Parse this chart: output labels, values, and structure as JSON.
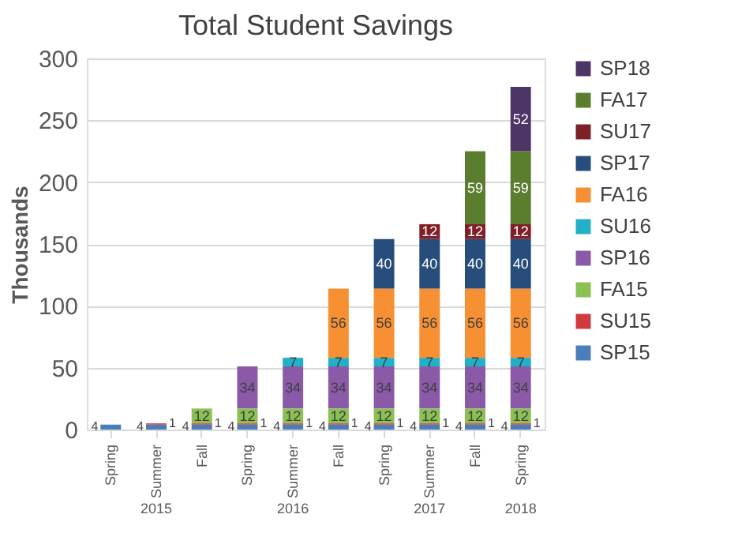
{
  "chart_data": {
    "type": "bar",
    "title": "Total Student Savings",
    "ylabel": "Thousands",
    "stacked": true,
    "data_labels": true,
    "legend": "right",
    "grid": "y",
    "categories": [
      "Spring",
      "Summer",
      "Fall",
      "Spring",
      "Summer",
      "Fall",
      "Spring",
      "Summer",
      "Fall",
      "Spring"
    ],
    "ylim": [
      0,
      300
    ],
    "yticks": [
      0,
      50,
      100,
      150,
      200,
      250,
      300
    ],
    "annotations": [
      "2015",
      "2016",
      "2017",
      "2018"
    ],
    "series": [
      {
        "name": "SP15",
        "color": "#4a7ebb",
        "values": [
          4,
          4,
          4,
          4,
          4,
          4,
          4,
          4,
          4,
          4
        ]
      },
      {
        "name": "SU15",
        "color": "#d0393e",
        "values": [
          null,
          1,
          1,
          1,
          1,
          1,
          1,
          1,
          1,
          1
        ]
      },
      {
        "name": "FA15",
        "color": "#8bc053",
        "values": [
          null,
          null,
          12,
          12,
          12,
          12,
          12,
          12,
          12,
          12
        ]
      },
      {
        "name": "SP16",
        "color": "#8a5aa8",
        "values": [
          null,
          null,
          null,
          34,
          34,
          34,
          34,
          34,
          34,
          34
        ]
      },
      {
        "name": "SU16",
        "color": "#21b0c8",
        "values": [
          null,
          null,
          null,
          null,
          7,
          7,
          7,
          7,
          7,
          7
        ]
      },
      {
        "name": "FA16",
        "color": "#f79032",
        "values": [
          null,
          null,
          null,
          null,
          null,
          56,
          56,
          56,
          56,
          56
        ]
      },
      {
        "name": "SP17",
        "color": "#264d7c",
        "values": [
          null,
          null,
          null,
          null,
          null,
          null,
          40,
          40,
          40,
          40
        ]
      },
      {
        "name": "SU17",
        "color": "#7f1f26",
        "values": [
          null,
          null,
          null,
          null,
          null,
          null,
          null,
          12,
          12,
          12
        ]
      },
      {
        "name": "FA17",
        "color": "#5a7d2e",
        "values": [
          null,
          null,
          null,
          null,
          null,
          null,
          null,
          null,
          59,
          59
        ]
      },
      {
        "name": "SP18",
        "color": "#4d3566",
        "values": [
          null,
          null,
          null,
          null,
          null,
          null,
          null,
          null,
          null,
          52
        ]
      }
    ]
  }
}
